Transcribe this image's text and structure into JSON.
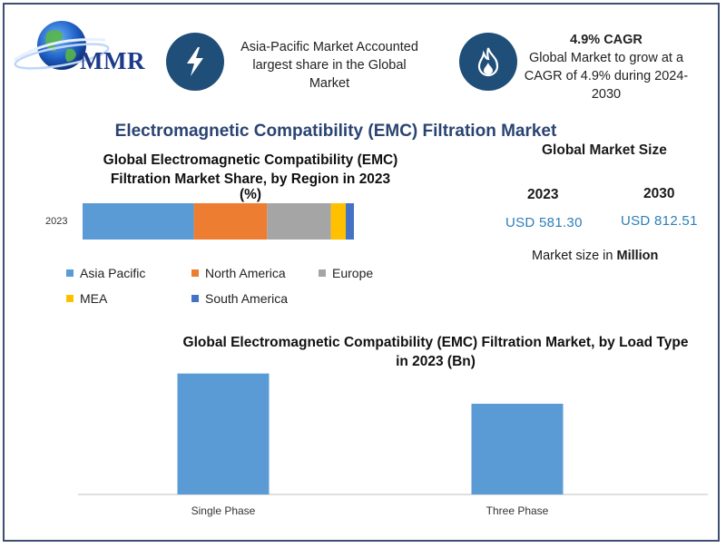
{
  "header": {
    "logo_text": "MMR",
    "callout_left": {
      "icon": "lightning-icon",
      "line1": "Asia-Pacific Market Accounted",
      "line2": "largest share in the Global",
      "line3": "Market"
    },
    "callout_right": {
      "icon": "flame-icon",
      "title": "4.9% CAGR",
      "line1": "Global Market to grow at a",
      "line2": "CAGR of 4.9% during 2024-",
      "line3": "2030"
    }
  },
  "main_title": "Electromagnetic Compatibility (EMC) Filtration Market",
  "market_size": {
    "title": "Global Market Size",
    "year_a": "2023",
    "year_b": "2030",
    "value_a": "USD 581.30",
    "value_b": "USD 812.51",
    "note_prefix": "Market size in ",
    "note_bold": "Million"
  },
  "colors": {
    "asia_pacific": "#5b9bd5",
    "north_america": "#ed7d31",
    "europe": "#a5a5a5",
    "mea": "#ffc000",
    "south_america": "#4472c4",
    "bar_blue": "#5b9bd5",
    "title_blue": "#2a4472",
    "icon_bg": "#1f4e79"
  },
  "chart_data": [
    {
      "type": "bar",
      "orientation": "horizontal-stacked",
      "title_line1": "Global Electromagnetic Compatibility (EMC)",
      "title_line2": "Filtration Market Share, by Region in 2023",
      "title_line3": "(%)",
      "categories": [
        "2023"
      ],
      "series": [
        {
          "name": "Asia Pacific",
          "values": [
            41
          ]
        },
        {
          "name": "North America",
          "values": [
            27
          ]
        },
        {
          "name": "Europe",
          "values": [
            23.5
          ]
        },
        {
          "name": "MEA",
          "values": [
            5.5
          ]
        },
        {
          "name": "South America",
          "values": [
            3
          ]
        }
      ],
      "xlim": [
        0,
        100
      ],
      "grid": false,
      "legend_position": "bottom"
    },
    {
      "type": "bar",
      "title_line1": "Global Electromagnetic Compatibility (EMC) Filtration Market, by Load Type",
      "title_line2": "in 2023 (Bn)",
      "categories": [
        "Single Phase",
        "Three Phase"
      ],
      "values": [
        100,
        75
      ],
      "ylim": [
        0,
        105
      ],
      "grid": false,
      "legend_position": "none"
    }
  ]
}
